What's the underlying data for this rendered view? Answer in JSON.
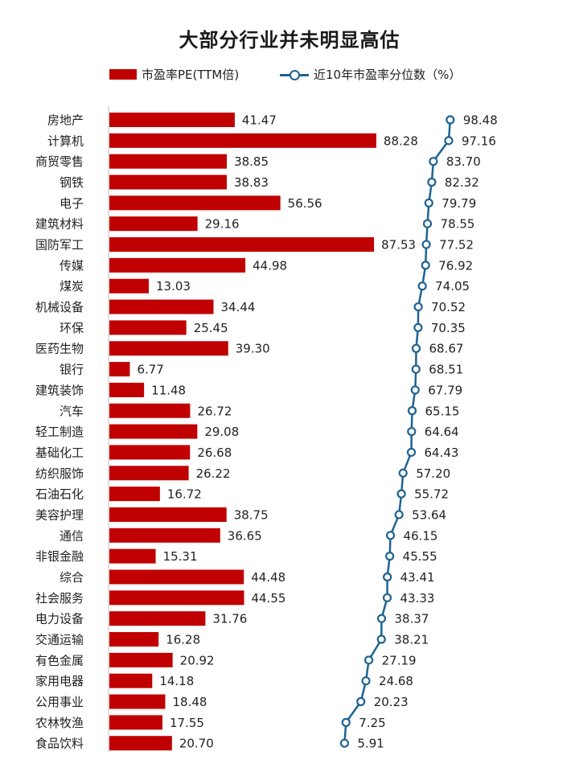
{
  "chart_data": {
    "type": "bar+line",
    "title": "大部分行业并未明显高估",
    "legend": {
      "bar_label": "市盈率PE(TTM倍)",
      "line_label": "近10年市盈率分位数（%）",
      "placement": "top"
    },
    "colors": {
      "bar": "#c00000",
      "line": "#1f6391",
      "marker_fill": "#ffffff"
    },
    "categories": [
      "房地产",
      "计算机",
      "商贸零售",
      "钢铁",
      "电子",
      "建筑材料",
      "国防军工",
      "传媒",
      "煤炭",
      "机械设备",
      "环保",
      "医药生物",
      "银行",
      "建筑装饰",
      "汽车",
      "轻工制造",
      "基础化工",
      "纺织服饰",
      "石油石化",
      "美容护理",
      "通信",
      "非银金融",
      "综合",
      "社会服务",
      "电力设备",
      "交通运输",
      "有色金属",
      "家用电器",
      "公用事业",
      "农林牧渔",
      "食品饮料"
    ],
    "series": [
      {
        "name": "市盈率PE(TTM倍)",
        "type": "bar",
        "values": [
          41.47,
          88.28,
          38.85,
          38.83,
          56.56,
          29.16,
          87.53,
          44.98,
          13.03,
          34.44,
          25.45,
          39.3,
          6.77,
          11.48,
          26.72,
          29.08,
          26.68,
          26.22,
          16.72,
          38.75,
          36.65,
          15.31,
          44.48,
          44.55,
          31.76,
          16.28,
          20.92,
          14.18,
          18.48,
          17.55,
          20.7
        ],
        "labels": [
          "41.47",
          "88.28",
          "38.85",
          "38.83",
          "56.56",
          "29.16",
          "87.53",
          "44.98",
          "13.03",
          "34.44",
          "25.45",
          "39.30",
          "6.77",
          "11.48",
          "26.72",
          "29.08",
          "26.68",
          "26.22",
          "16.72",
          "38.75",
          "36.65",
          "15.31",
          "44.48",
          "44.55",
          "31.76",
          "16.28",
          "20.92",
          "14.18",
          "18.48",
          "17.55",
          "20.70"
        ]
      },
      {
        "name": "近10年市盈率分位数（%）",
        "type": "line",
        "values": [
          98.48,
          97.16,
          83.7,
          82.32,
          79.79,
          78.55,
          77.52,
          76.92,
          74.05,
          70.52,
          70.35,
          68.67,
          68.51,
          67.79,
          65.15,
          64.64,
          64.43,
          57.2,
          55.72,
          53.64,
          46.15,
          45.55,
          43.41,
          43.33,
          38.37,
          38.21,
          27.19,
          24.68,
          20.23,
          7.25,
          5.91
        ],
        "labels": [
          "98.48",
          "97.16",
          "83.70",
          "82.32",
          "79.79",
          "78.55",
          "77.52",
          "76.92",
          "74.05",
          "70.52",
          "70.35",
          "68.67",
          "68.51",
          "67.79",
          "65.15",
          "64.64",
          "64.43",
          "57.20",
          "55.72",
          "53.64",
          "46.15",
          "45.55",
          "43.41",
          "43.33",
          "38.37",
          "38.21",
          "27.19",
          "24.68",
          "20.23",
          "7.25",
          "5.91"
        ]
      }
    ],
    "grid": false
  }
}
